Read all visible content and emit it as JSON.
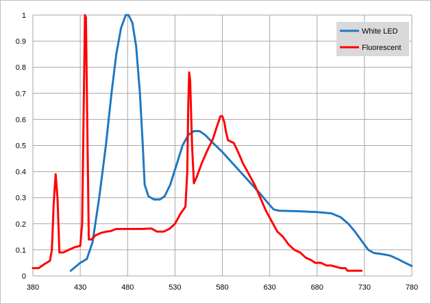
{
  "colors": {
    "white_led": "#1f77c0",
    "fluorescent": "#ff0000",
    "grid": "#a6a6a6",
    "legend_bg": "#d9d9d9"
  },
  "chart_data": {
    "type": "line",
    "title": "",
    "xlabel": "",
    "ylabel": "",
    "xlim": [
      380,
      780
    ],
    "ylim": [
      0,
      1
    ],
    "x_ticks": [
      380,
      430,
      480,
      530,
      580,
      630,
      680,
      730,
      780
    ],
    "y_ticks": [
      0,
      0.1,
      0.2,
      0.3,
      0.4,
      0.5,
      0.6,
      0.7,
      0.8,
      0.9,
      1
    ],
    "y_tick_labels": [
      "0",
      "0.1",
      "0.2",
      "0.3",
      "0.4",
      "0.5",
      "0.6",
      "0.7",
      "0.8",
      "0.9",
      "1"
    ],
    "grid": true,
    "legend_position": "top-right",
    "series": [
      {
        "name": "White LED",
        "color": "#1f77c0",
        "points": [
          [
            420,
            0.02
          ],
          [
            430,
            0.05
          ],
          [
            437,
            0.065
          ],
          [
            443,
            0.13
          ],
          [
            450,
            0.3
          ],
          [
            457,
            0.5
          ],
          [
            463,
            0.7
          ],
          [
            468,
            0.85
          ],
          [
            473,
            0.95
          ],
          [
            478,
            1.0
          ],
          [
            481,
            1.0
          ],
          [
            485,
            0.97
          ],
          [
            489,
            0.88
          ],
          [
            493,
            0.7
          ],
          [
            496,
            0.5
          ],
          [
            498,
            0.35
          ],
          [
            502,
            0.305
          ],
          [
            508,
            0.293
          ],
          [
            514,
            0.293
          ],
          [
            519,
            0.305
          ],
          [
            525,
            0.35
          ],
          [
            532,
            0.43
          ],
          [
            538,
            0.5
          ],
          [
            544,
            0.54
          ],
          [
            550,
            0.555
          ],
          [
            556,
            0.555
          ],
          [
            562,
            0.54
          ],
          [
            570,
            0.51
          ],
          [
            580,
            0.475
          ],
          [
            590,
            0.435
          ],
          [
            600,
            0.395
          ],
          [
            610,
            0.355
          ],
          [
            620,
            0.315
          ],
          [
            628,
            0.28
          ],
          [
            634,
            0.255
          ],
          [
            640,
            0.25
          ],
          [
            660,
            0.248
          ],
          [
            680,
            0.245
          ],
          [
            695,
            0.24
          ],
          [
            705,
            0.225
          ],
          [
            713,
            0.2
          ],
          [
            720,
            0.17
          ],
          [
            728,
            0.13
          ],
          [
            734,
            0.1
          ],
          [
            740,
            0.088
          ],
          [
            750,
            0.083
          ],
          [
            757,
            0.078
          ],
          [
            765,
            0.065
          ],
          [
            772,
            0.052
          ],
          [
            780,
            0.038
          ]
        ]
      },
      {
        "name": "Fluorescent",
        "color": "#ff0000",
        "points": [
          [
            380,
            0.03
          ],
          [
            386,
            0.03
          ],
          [
            392,
            0.045
          ],
          [
            398,
            0.058
          ],
          [
            400,
            0.1
          ],
          [
            402,
            0.28
          ],
          [
            404,
            0.39
          ],
          [
            406,
            0.3
          ],
          [
            408,
            0.09
          ],
          [
            412,
            0.09
          ],
          [
            418,
            0.1
          ],
          [
            424,
            0.11
          ],
          [
            430,
            0.115
          ],
          [
            432,
            0.2
          ],
          [
            434,
            0.75
          ],
          [
            435,
            1.0
          ],
          [
            436,
            0.99
          ],
          [
            437,
            0.7
          ],
          [
            439,
            0.14
          ],
          [
            442,
            0.14
          ],
          [
            446,
            0.155
          ],
          [
            452,
            0.165
          ],
          [
            458,
            0.17
          ],
          [
            462,
            0.172
          ],
          [
            468,
            0.18
          ],
          [
            480,
            0.18
          ],
          [
            495,
            0.18
          ],
          [
            505,
            0.182
          ],
          [
            511,
            0.17
          ],
          [
            518,
            0.17
          ],
          [
            524,
            0.18
          ],
          [
            530,
            0.2
          ],
          [
            536,
            0.24
          ],
          [
            541,
            0.265
          ],
          [
            543,
            0.4
          ],
          [
            544,
            0.65
          ],
          [
            545,
            0.78
          ],
          [
            546,
            0.75
          ],
          [
            548,
            0.5
          ],
          [
            550,
            0.355
          ],
          [
            553,
            0.38
          ],
          [
            558,
            0.43
          ],
          [
            564,
            0.48
          ],
          [
            570,
            0.525
          ],
          [
            574,
            0.57
          ],
          [
            578,
            0.612
          ],
          [
            580,
            0.612
          ],
          [
            582,
            0.59
          ],
          [
            584,
            0.55
          ],
          [
            586,
            0.52
          ],
          [
            592,
            0.51
          ],
          [
            596,
            0.48
          ],
          [
            602,
            0.43
          ],
          [
            608,
            0.39
          ],
          [
            614,
            0.35
          ],
          [
            620,
            0.3
          ],
          [
            626,
            0.25
          ],
          [
            632,
            0.21
          ],
          [
            638,
            0.17
          ],
          [
            644,
            0.15
          ],
          [
            650,
            0.12
          ],
          [
            656,
            0.1
          ],
          [
            662,
            0.09
          ],
          [
            668,
            0.07
          ],
          [
            674,
            0.06
          ],
          [
            678,
            0.05
          ],
          [
            684,
            0.05
          ],
          [
            690,
            0.04
          ],
          [
            695,
            0.04
          ],
          [
            700,
            0.035
          ],
          [
            705,
            0.03
          ],
          [
            710,
            0.03
          ],
          [
            712,
            0.02
          ],
          [
            720,
            0.02
          ],
          [
            727,
            0.02
          ]
        ]
      }
    ]
  }
}
